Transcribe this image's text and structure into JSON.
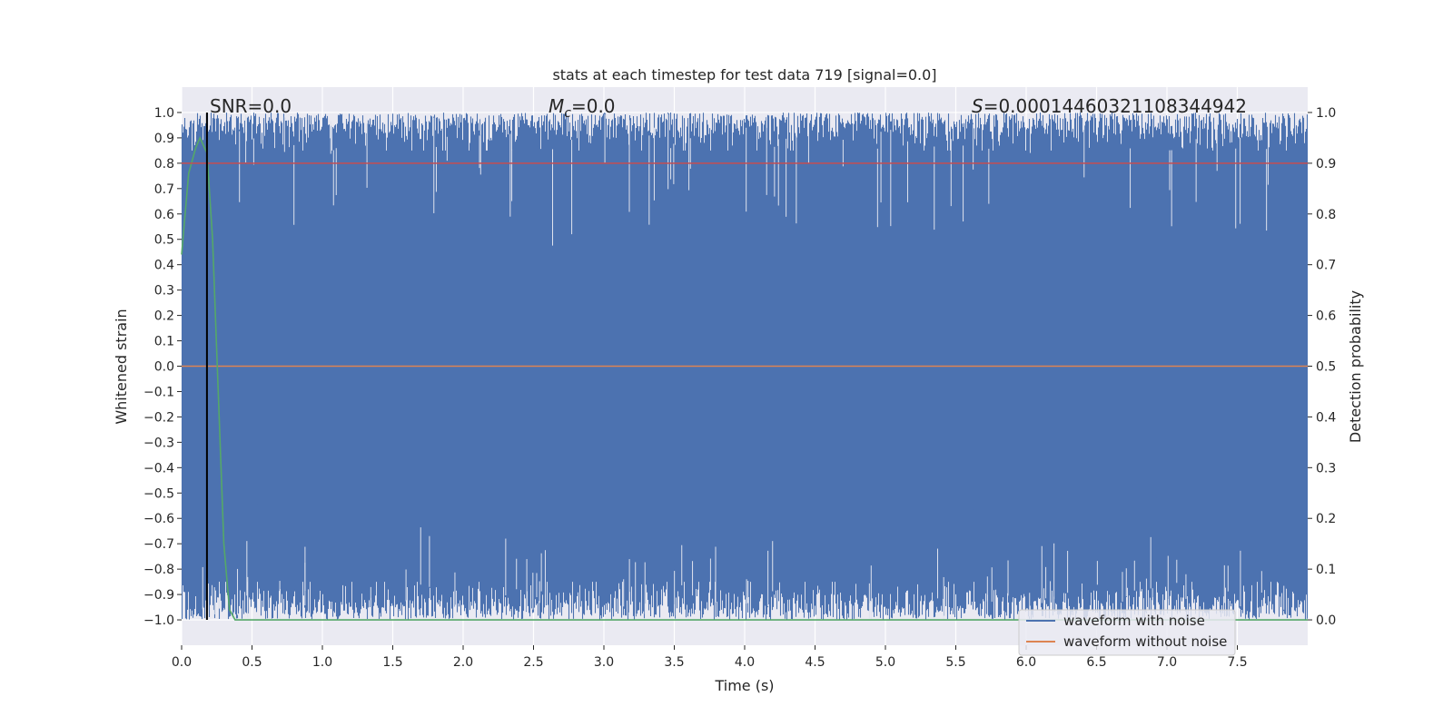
{
  "chart_data": {
    "type": "line",
    "title": "stats at each timestep for test data 719 [signal=0.0]",
    "xlabel": "Time (s)",
    "ylabel": "Whitened strain",
    "y2label": "Detection probability",
    "xlim": [
      0.0,
      8.0
    ],
    "ylim": [
      -1.1,
      1.1
    ],
    "y2lim": [
      -0.05,
      1.05
    ],
    "x_ticks": [
      "0.0",
      "0.5",
      "1.0",
      "1.5",
      "2.0",
      "2.5",
      "3.0",
      "3.5",
      "4.0",
      "4.5",
      "5.0",
      "5.5",
      "6.0",
      "6.5",
      "7.0",
      "7.5"
    ],
    "y_ticks": [
      "1.0",
      "0.9",
      "0.8",
      "0.7",
      "0.6",
      "0.5",
      "0.4",
      "0.3",
      "0.2",
      "0.1",
      "0.0",
      "−0.1",
      "−0.2",
      "−0.3",
      "−0.4",
      "−0.5",
      "−0.6",
      "−0.7",
      "−0.8",
      "−0.9",
      "−1.0"
    ],
    "y2_ticks": [
      "1.0",
      "0.9",
      "0.8",
      "0.7",
      "0.6",
      "0.5",
      "0.4",
      "0.3",
      "0.2",
      "0.1",
      "0.0"
    ],
    "grid": true,
    "legend_position": "lower right",
    "annotations": {
      "snr": "SNR=0.0",
      "mc_symbol": "M",
      "mc_subscript": "c",
      "mc_value": "=0.0",
      "s_symbol": "S",
      "s_value": "=0.00014460321108344942"
    },
    "series": [
      {
        "name": "waveform with noise",
        "axis": "left",
        "color": "#4c72b0",
        "description_values": "dense noise filling approximately -1.0 to 1.0 across 0.0-8.0 s",
        "upper_envelope_range": [
          0.85,
          1.0
        ],
        "lower_envelope_range": [
          -1.0,
          -0.85
        ]
      },
      {
        "name": "waveform without noise",
        "axis": "left",
        "color": "#dd8452",
        "x": [
          0.0,
          8.0
        ],
        "y": [
          0.0,
          0.0
        ]
      },
      {
        "name": "detection probability",
        "axis": "right",
        "color": "#55a868",
        "x": [
          0.0,
          0.05,
          0.1,
          0.13,
          0.18,
          0.22,
          0.26,
          0.3,
          0.34,
          0.38,
          0.5,
          1.0,
          2.0,
          4.0,
          6.0,
          8.0
        ],
        "y": [
          0.72,
          0.88,
          0.93,
          0.95,
          0.92,
          0.75,
          0.45,
          0.15,
          0.02,
          0.0,
          0.0,
          0.0,
          0.0,
          0.0,
          0.0,
          0.0
        ]
      },
      {
        "name": "threshold",
        "axis": "right",
        "color": "#c44e52",
        "x": [
          0.0,
          8.0
        ],
        "y": [
          0.9,
          0.9
        ]
      },
      {
        "name": "marker",
        "axis": "right",
        "color": "#000000",
        "x": [
          0.18,
          0.18
        ],
        "y": [
          0.0,
          1.0
        ]
      }
    ],
    "legend": [
      "waveform with noise",
      "waveform without noise"
    ]
  }
}
